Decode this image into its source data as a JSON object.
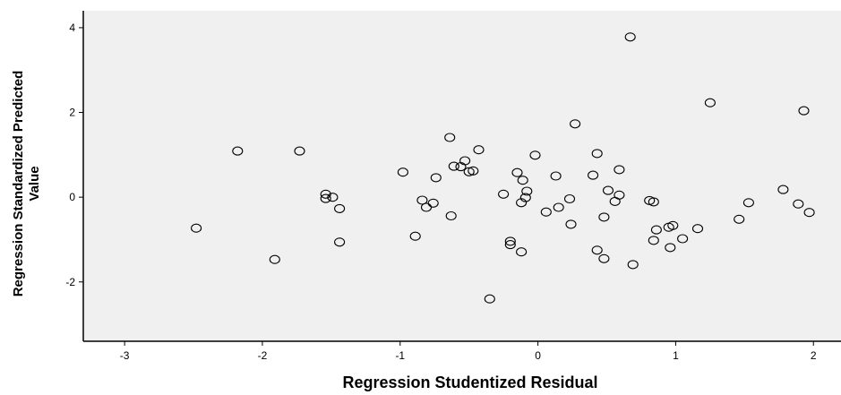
{
  "chart_data": {
    "type": "scatter",
    "title": "",
    "xlabel": "Regression Studentized Residual",
    "ylabel_line1": "Regression Standardized Predicted",
    "ylabel_line2": "Value",
    "xlim": [
      -3.3,
      2.2
    ],
    "ylim": [
      -3.4,
      4.4
    ],
    "xticks": [
      -3,
      -2,
      -1,
      0,
      1,
      2
    ],
    "yticks": [
      -2,
      0,
      2,
      4
    ],
    "grid": false,
    "marker": "open-circle",
    "plot_background": "#f0f0f0",
    "point_stroke": "#000000",
    "points": [
      [
        0.67,
        3.78
      ],
      [
        1.25,
        2.23
      ],
      [
        1.93,
        2.04
      ],
      [
        0.27,
        1.73
      ],
      [
        -2.18,
        1.09
      ],
      [
        -1.73,
        1.09
      ],
      [
        -0.64,
        1.41
      ],
      [
        -0.43,
        1.12
      ],
      [
        -0.02,
        0.99
      ],
      [
        0.43,
        1.03
      ],
      [
        -0.98,
        0.59
      ],
      [
        -0.61,
        0.73
      ],
      [
        -0.56,
        0.72
      ],
      [
        -0.53,
        0.86
      ],
      [
        -0.5,
        0.6
      ],
      [
        -0.47,
        0.62
      ],
      [
        -0.74,
        0.46
      ],
      [
        -0.15,
        0.58
      ],
      [
        -0.11,
        0.4
      ],
      [
        0.13,
        0.5
      ],
      [
        0.4,
        0.52
      ],
      [
        0.59,
        0.65
      ],
      [
        -1.54,
        0.07
      ],
      [
        -1.54,
        -0.03
      ],
      [
        -1.49,
        0.0
      ],
      [
        -1.44,
        -0.27
      ],
      [
        -0.84,
        -0.07
      ],
      [
        -0.81,
        -0.24
      ],
      [
        -0.76,
        -0.14
      ],
      [
        -0.63,
        -0.44
      ],
      [
        -0.25,
        0.07
      ],
      [
        -0.08,
        0.14
      ],
      [
        -0.09,
        -0.01
      ],
      [
        -0.12,
        -0.13
      ],
      [
        0.06,
        -0.35
      ],
      [
        0.15,
        -0.24
      ],
      [
        0.23,
        -0.04
      ],
      [
        0.24,
        -0.64
      ],
      [
        0.48,
        -0.47
      ],
      [
        0.51,
        0.16
      ],
      [
        0.56,
        -0.1
      ],
      [
        0.59,
        0.05
      ],
      [
        0.81,
        -0.08
      ],
      [
        0.84,
        -0.11
      ],
      [
        0.86,
        -0.77
      ],
      [
        0.95,
        -0.71
      ],
      [
        0.98,
        -0.67
      ],
      [
        1.05,
        -0.98
      ],
      [
        1.16,
        -0.74
      ],
      [
        1.46,
        -0.52
      ],
      [
        1.53,
        -0.13
      ],
      [
        1.78,
        0.18
      ],
      [
        1.89,
        -0.16
      ],
      [
        1.97,
        -0.36
      ],
      [
        -2.48,
        -0.73
      ],
      [
        -1.44,
        -1.06
      ],
      [
        -0.89,
        -0.92
      ],
      [
        -1.91,
        -1.47
      ],
      [
        -0.2,
        -1.04
      ],
      [
        -0.2,
        -1.12
      ],
      [
        -0.12,
        -1.29
      ],
      [
        0.43,
        -1.25
      ],
      [
        0.48,
        -1.45
      ],
      [
        0.69,
        -1.59
      ],
      [
        0.84,
        -1.02
      ],
      [
        0.96,
        -1.19
      ],
      [
        -0.35,
        -2.4
      ]
    ]
  }
}
